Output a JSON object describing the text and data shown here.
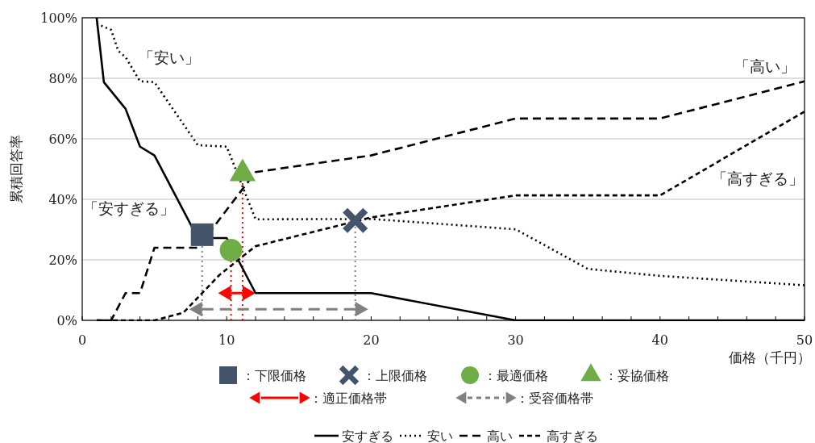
{
  "chart_data": {
    "type": "line",
    "xlabel": "価格（千円）",
    "ylabel": "累積回答率",
    "xlim": [
      0,
      50
    ],
    "ylim": [
      0,
      100
    ],
    "xticks": [
      0,
      {
        "value": 2,
        "label": null
      },
      {
        "value": 4,
        "label": null
      },
      {
        "value": 6,
        "label": null
      },
      {
        "value": 8,
        "label": null
      },
      10,
      {
        "value": 12,
        "label": null
      },
      {
        "value": 14,
        "label": null
      },
      {
        "value": 16,
        "label": null
      },
      {
        "value": 18,
        "label": null
      },
      20,
      {
        "value": 22,
        "label": null
      },
      {
        "value": 24,
        "label": null
      },
      {
        "value": 26,
        "label": null
      },
      {
        "value": 28,
        "label": null
      },
      30,
      {
        "value": 32,
        "label": null
      },
      {
        "value": 34,
        "label": null
      },
      {
        "value": 36,
        "label": null
      },
      {
        "value": 38,
        "label": null
      },
      40,
      {
        "value": 42,
        "label": null
      },
      {
        "value": 44,
        "label": null
      },
      {
        "value": 46,
        "label": null
      },
      {
        "value": 48,
        "label": null
      },
      50
    ],
    "yticks": [
      {
        "value": 0,
        "label": "0%"
      },
      {
        "value": 20,
        "label": "20%"
      },
      {
        "value": 40,
        "label": "40%"
      },
      {
        "value": 60,
        "label": "60%"
      },
      {
        "value": 80,
        "label": "80%"
      },
      {
        "value": 100,
        "label": "100%"
      }
    ],
    "grid": "y",
    "legend": "bottom",
    "series": [
      {
        "name": "安すぎる",
        "color": "#000000",
        "line_style": "solid",
        "x": [
          1,
          1.5,
          3,
          4,
          5,
          8,
          10,
          12,
          20,
          30,
          50
        ],
        "values": [
          100,
          78.7,
          69.9,
          57.4,
          54.5,
          27.2,
          27.2,
          9,
          9,
          0,
          0
        ]
      },
      {
        "name": "安い",
        "color": "#000000",
        "line_style": "dotted",
        "x": [
          1,
          2,
          2.5,
          3,
          4,
          5,
          8,
          10,
          12,
          20,
          30,
          35,
          40,
          50
        ],
        "values": [
          98,
          96,
          89,
          87,
          79,
          78.7,
          57.9,
          57.4,
          33.4,
          33.5,
          30.1,
          17,
          14.7,
          11.6
        ]
      },
      {
        "name": "高い",
        "color": "#000000",
        "line_style": "dashed",
        "x": [
          1,
          2,
          3,
          4,
          5,
          8,
          12,
          20,
          30,
          40,
          50
        ],
        "values": [
          0,
          0,
          9,
          9,
          24,
          24,
          49,
          54.5,
          66.7,
          66.7,
          79
        ]
      },
      {
        "name": "高すぎる",
        "color": "#000000",
        "line_style": "dashed",
        "x": [
          1,
          5,
          7,
          9.5,
          12,
          20,
          30,
          40,
          50
        ],
        "values": [
          0,
          0,
          2.5,
          15,
          24.5,
          34,
          41.3,
          41.3,
          69
        ]
      },
      {
        "type": "scatter",
        "name": "：下限価格",
        "color": "#44546a",
        "marker": "square",
        "x": [
          8.3
        ],
        "values": [
          28.3
        ]
      },
      {
        "type": "scatter",
        "name": "：上限価格",
        "color": "#44546a",
        "marker": "cross",
        "x": [
          18.9
        ],
        "values": [
          33
        ]
      },
      {
        "type": "scatter",
        "name": "：最適価格",
        "color": "#70ad47",
        "marker": "circle",
        "x": [
          10.3
        ],
        "values": [
          23.2
        ]
      },
      {
        "type": "scatter",
        "name": "：妥協価格",
        "color": "#70ad47",
        "marker": "triangle",
        "x": [
          11.1
        ],
        "values": [
          48.5
        ]
      },
      {
        "name": "：適正価格帯",
        "color": "#ff0000",
        "line_style": "solid",
        "x": [
          10.3,
          11.1
        ],
        "values": [
          9,
          9
        ]
      },
      {
        "name": "：受容価格帯",
        "color": "#808080",
        "line_style": "dashed",
        "x": [
          8.3,
          18.9
        ],
        "values": [
          3.7,
          3.7
        ]
      }
    ],
    "ref_lines": [
      {
        "axis": "x",
        "value": 8.3,
        "label": null,
        "color": "#808080",
        "line_style": "dotted"
      },
      {
        "axis": "x",
        "value": 18.9,
        "label": null,
        "color": "#808080",
        "line_style": "dotted"
      },
      {
        "axis": "x",
        "value": 10.3,
        "label": null,
        "color": "#ff0000",
        "line_style": "dotted"
      },
      {
        "axis": "x",
        "value": 11.1,
        "label": null,
        "color": "#ff0000",
        "line_style": "dotted"
      }
    ],
    "annotations": [
      "「安い」",
      "「安すぎる」",
      "「高い」",
      "「高すぎる」"
    ]
  }
}
